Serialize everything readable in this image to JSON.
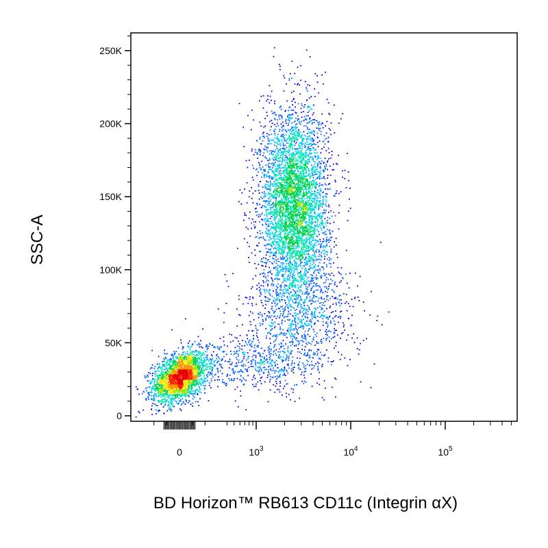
{
  "chart_data": {
    "type": "scatter",
    "style": "density-colored dot plot (blue low density to red high density)",
    "title": "",
    "xlabel": "BD Horizon™ RB613 CD11c (Integrin αX)",
    "ylabel": "SSC-A",
    "x_scale": "biexponential",
    "y_scale": "linear",
    "ylim": [
      0,
      262144
    ],
    "xlim": [
      -300,
      500000
    ],
    "x_ticks": [
      {
        "value": 0,
        "base": "0",
        "exp": ""
      },
      {
        "value": 1000,
        "base": "10",
        "exp": "3"
      },
      {
        "value": 10000,
        "base": "10",
        "exp": "4"
      },
      {
        "value": 100000,
        "base": "10",
        "exp": "5"
      }
    ],
    "y_ticks": [
      {
        "value": 0,
        "label": "0"
      },
      {
        "value": 50000,
        "label": "50K"
      },
      {
        "value": 100000,
        "label": "100K"
      },
      {
        "value": 150000,
        "label": "150K"
      },
      {
        "value": 200000,
        "label": "200K"
      },
      {
        "value": 250000,
        "label": "250K"
      }
    ],
    "density_colors": [
      "#0000e6",
      "#0066ff",
      "#00c8ff",
      "#00e6b4",
      "#00d24b",
      "#96e600",
      "#ffe600",
      "#ff9600",
      "#ff2800",
      "#e60000"
    ],
    "populations": [
      {
        "name": "",
        "x_center": 0,
        "y_center": 27000,
        "x_spread": 150,
        "y_spread": 8000,
        "relative_count": 0.28,
        "peak_density": "red"
      },
      {
        "name": "",
        "x_center": 2500,
        "y_center": 145000,
        "x_spread": 0.18,
        "y_spread": 32000,
        "relative_count": 0.52,
        "peak_density": "red"
      },
      {
        "name": "",
        "x_center": 3000,
        "y_center": 70000,
        "x_spread": 0.3,
        "y_spread": 20000,
        "relative_count": 0.1,
        "peak_density": "cyan"
      },
      {
        "name": "",
        "x_center": 1000,
        "y_center": 35000,
        "x_spread": 0.35,
        "y_spread": 10000,
        "relative_count": 0.06,
        "peak_density": "blue"
      }
    ],
    "grid": false,
    "legend": "none"
  }
}
